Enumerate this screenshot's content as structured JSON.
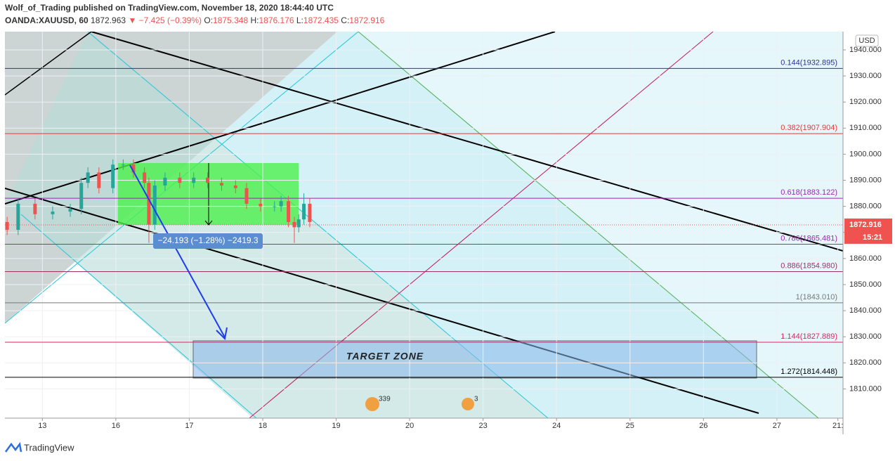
{
  "chart_data": {
    "type": "candlestick",
    "header": "Wolf_of_Trading published on TradingView.com, November 18, 2020 18:44:40 UTC",
    "symbol": "OANDA:XAUUSD, 60",
    "last": "1872.963",
    "change": "▼ −7.425 (−0.39%)",
    "ohlc": [
      "O:",
      "1875.348",
      "H:",
      "1876.176",
      "L:",
      "1872.435",
      "C:",
      "1872.916"
    ],
    "currency": "USD",
    "current_price": {
      "value": 1872.916,
      "label": "1872.916"
    },
    "countdown": "15:21",
    "measure": "−24.193 (−1.28%) −2419.3",
    "zone": "TARGET ZONE",
    "events": [
      "339",
      "3"
    ],
    "brand": "TradingView",
    "x": [
      -0.48,
      -0.33,
      -0.1,
      0.14,
      0.38,
      0.53,
      0.62,
      0.77,
      0.96,
      1.1,
      1.24,
      1.39,
      1.45,
      1.53,
      1.67,
      1.87,
      2.06,
      2.25,
      2.44,
      2.63,
      2.78,
      2.97,
      3.16,
      3.25,
      3.35,
      3.43,
      3.49,
      3.56,
      3.64
    ],
    "open": [
      1874,
      1871,
      1881,
      1877,
      1878,
      1879,
      1889,
      1893,
      1887,
      1896,
      1896,
      1893,
      1889,
      1873,
      1888,
      1891,
      1889,
      1891,
      1889,
      1888,
      1887,
      1881,
      1880,
      1880,
      1882,
      1874,
      1872,
      1875,
      1881
    ],
    "high": [
      1876,
      1883,
      1883,
      1880,
      1881,
      1891,
      1895,
      1895,
      1898,
      1898,
      1898,
      1895,
      1891,
      1890,
      1893,
      1893,
      1893,
      1893,
      1891,
      1890,
      1889,
      1883,
      1882,
      1884,
      1884,
      1876,
      1877,
      1885,
      1883
    ],
    "low": [
      1869,
      1869,
      1875,
      1875,
      1876,
      1877,
      1887,
      1885,
      1885,
      1894,
      1891,
      1887,
      1866,
      1871,
      1886,
      1887,
      1887,
      1887,
      1886,
      1885,
      1879,
      1878,
      1878,
      1878,
      1872,
      1866,
      1870,
      1873,
      1872
    ],
    "close": [
      1871,
      1881,
      1877,
      1878,
      1879,
      1889,
      1893,
      1887,
      1896,
      1896,
      1893,
      1889,
      1873,
      1888,
      1891,
      1889,
      1891,
      1889,
      1888,
      1887,
      1881,
      1880,
      1880,
      1882,
      1874,
      1872,
      1875,
      1881,
      1874
    ],
    "up_color": "#26a69a",
    "down_color": "#ef5350",
    "xlim": [
      -0.51,
      10.9
    ],
    "xticks": [
      {
        "value": 0,
        "label": "13"
      },
      {
        "value": 1,
        "label": "16"
      },
      {
        "value": 2,
        "label": "17"
      },
      {
        "value": 3,
        "label": "18"
      },
      {
        "value": 4,
        "label": "19"
      },
      {
        "value": 5,
        "label": "20"
      },
      {
        "value": 6,
        "label": "23"
      },
      {
        "value": 7,
        "label": "24"
      },
      {
        "value": 8,
        "label": "25"
      },
      {
        "value": 9,
        "label": "26"
      },
      {
        "value": 10,
        "label": "27"
      },
      {
        "value": 10.83,
        "label": "21:"
      }
    ],
    "ylim": [
      1798.8,
      1947
    ],
    "yticks": [
      {
        "value": 1810,
        "label": "1810.000"
      },
      {
        "value": 1820,
        "label": "1820.000"
      },
      {
        "value": 1830,
        "label": "1830.000"
      },
      {
        "value": 1840,
        "label": "1840.000"
      },
      {
        "value": 1850,
        "label": "1850.000"
      },
      {
        "value": 1860,
        "label": "1860.000"
      },
      {
        "value": 1870,
        "label": "1870.000"
      },
      {
        "value": 1880,
        "label": "1880.000"
      },
      {
        "value": 1890,
        "label": "1890.000"
      },
      {
        "value": 1900,
        "label": "1900.000"
      },
      {
        "value": 1910,
        "label": "1910.000"
      },
      {
        "value": 1920,
        "label": "1920.000"
      },
      {
        "value": 1930,
        "label": "1930.000"
      },
      {
        "value": 1940,
        "label": "1940.000"
      }
    ],
    "levels": [
      {
        "label": "0.144(1932.895)",
        "value": 1932.895,
        "color": "#303096"
      },
      {
        "label": "0.382(1907.904)",
        "value": 1907.904,
        "color": "#e53935"
      },
      {
        "label": "0.618(1883.122)",
        "value": 1883.122,
        "color": "#9c27b0"
      },
      {
        "label": "0.786(1865.481)",
        "value": 1865.481,
        "color": "#9c27b0"
      },
      {
        "label": "0.886(1854.980)",
        "value": 1854.98,
        "color": "#a0306a"
      },
      {
        "label": "1(1843.010)",
        "value": 1843.01,
        "color": "#787878"
      },
      {
        "label": "1.144(1827.889)",
        "value": 1827.889,
        "color": "#e91e63"
      },
      {
        "label": "1.272(1814.448)",
        "value": 1814.448,
        "color": "#000000"
      }
    ]
  }
}
